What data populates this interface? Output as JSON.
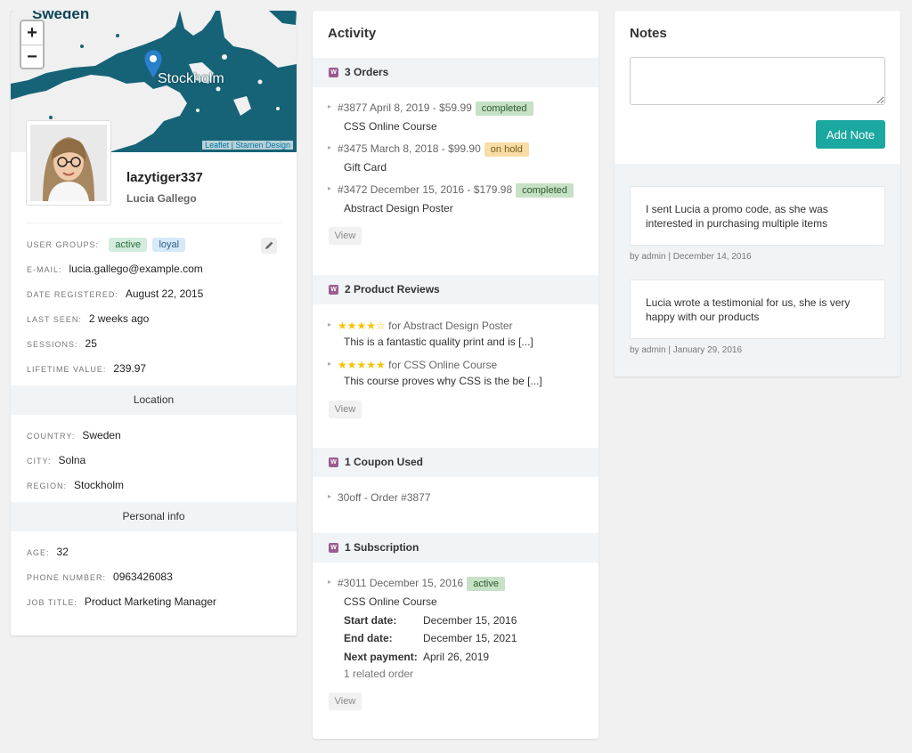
{
  "profile": {
    "map": {
      "country_label": "Sweden",
      "city_label": "Stockholm",
      "zoom_in": "+",
      "zoom_out": "−",
      "attribution": "Leaflet | Stamen Design"
    },
    "username": "lazytiger337",
    "full_name": "Lucia Gallego",
    "user_groups_label": "User groups:",
    "user_groups": [
      "active",
      "loyal"
    ],
    "email_label": "E-mail:",
    "email": "lucia.gallego@example.com",
    "date_registered_label": "Date registered:",
    "date_registered": "August 22, 2015",
    "last_seen_label": "Last seen:",
    "last_seen": "2 weeks ago",
    "sessions_label": "Sessions:",
    "sessions": "25",
    "lifetime_value_label": "Lifetime value:",
    "lifetime_value": "239.97",
    "location_heading": "Location",
    "country_label": "Country:",
    "country": "Sweden",
    "city_label": "City:",
    "city": "Solna",
    "region_label": "Region:",
    "region": "Stockholm",
    "personal_heading": "Personal info",
    "age_label": "Age:",
    "age": "32",
    "phone_label": "Phone number:",
    "phone": "0963426083",
    "job_label": "Job title:",
    "job": "Product Marketing Manager"
  },
  "activity": {
    "title": "Activity",
    "woo_icon": "W",
    "orders": {
      "heading": "3 Orders",
      "items": [
        {
          "line": "#3877 April 8, 2019 - $59.99",
          "status": "completed",
          "product": "CSS Online Course"
        },
        {
          "line": "#3475 March 8, 2018 - $99.90",
          "status": "on hold",
          "product": "Gift Card"
        },
        {
          "line": "#3472 December 15, 2016 - $179.98",
          "status": "completed",
          "product": "Abstract Design Poster"
        }
      ],
      "view": "View"
    },
    "reviews": {
      "heading": "2 Product Reviews",
      "items": [
        {
          "stars": "★★★★☆",
          "rating": 4,
          "for": "for Abstract Design Poster",
          "text": "This is a fantastic quality print and is [...]"
        },
        {
          "stars": "★★★★★",
          "rating": 5,
          "for": "for CSS Online Course",
          "text": "This course proves why CSS is the be [...]"
        }
      ],
      "view": "View"
    },
    "coupons": {
      "heading": "1 Coupon Used",
      "items": [
        {
          "line": "30off - Order #3877"
        }
      ]
    },
    "subscriptions": {
      "heading": "1 Subscription",
      "line": "#3011 December 15, 2016",
      "status": "active",
      "product": "CSS Online Course",
      "start_label": "Start date:",
      "start": "December 15, 2016",
      "end_label": "End date:",
      "end": "December 15, 2021",
      "next_label": "Next payment:",
      "next": "April 26, 2019",
      "related": "1 related order",
      "view": "View"
    }
  },
  "notes": {
    "title": "Notes",
    "input_value": "",
    "add_button": "Add Note",
    "items": [
      {
        "text": "I sent Lucia a promo code, as she was interested in purchasing multiple items",
        "meta": "by admin | December 14, 2016"
      },
      {
        "text": "Lucia wrote a testimonial for us, she is very happy with our products",
        "meta": "by admin | January 29, 2016"
      }
    ]
  },
  "colors": {
    "map_water": "#166377",
    "map_land": "#f1f1f1",
    "accent": "#1ba8a0",
    "woo_purple": "#9b5c8f",
    "star": "#f5c400"
  }
}
